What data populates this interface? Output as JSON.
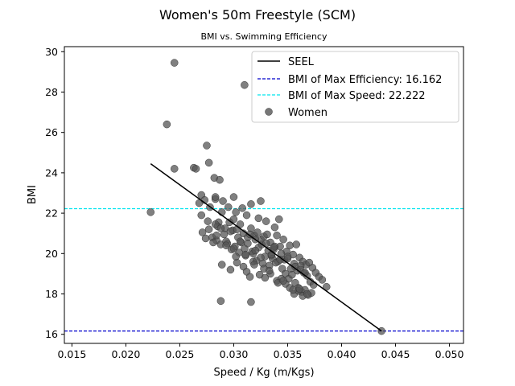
{
  "chart_data": {
    "type": "scatter",
    "title": "Women's 50m Freestyle (SCM)",
    "subtitle": "BMI vs. Swimming Efficiency",
    "xlabel": "Speed / Kg (m/Kgs)",
    "ylabel": "BMI",
    "xlim": [
      0.0143,
      0.0513
    ],
    "ylim": [
      15.55,
      30.25
    ],
    "xticks": [
      "0.015",
      "0.020",
      "0.025",
      "0.030",
      "0.035",
      "0.040",
      "0.045",
      "0.050"
    ],
    "yticks": [
      "16",
      "18",
      "20",
      "22",
      "24",
      "26",
      "28",
      "30"
    ],
    "grid": false,
    "legend_position": "top-right",
    "legend": [
      {
        "label": "SEEL",
        "style": "solid-line",
        "color": "#000000"
      },
      {
        "label": "BMI of Max Efficiency: 16.162",
        "style": "dashed-line",
        "color": "#0000cc"
      },
      {
        "label": "BMI of Max Speed: 22.222",
        "style": "dashed-line",
        "color": "#00e5ee"
      },
      {
        "label": "Women",
        "style": "marker",
        "color": "#555555"
      }
    ],
    "hlines": [
      {
        "y": 16.162,
        "color": "#0000cc"
      },
      {
        "y": 22.222,
        "color": "#00e5ee"
      }
    ],
    "seel_line": {
      "x": [
        0.0223,
        0.0437
      ],
      "y": [
        24.45,
        16.162
      ],
      "color": "#000000"
    },
    "series": [
      {
        "name": "Women",
        "color": "#555555",
        "x": [
          0.0245,
          0.031,
          0.0238,
          0.0223,
          0.0245,
          0.0263,
          0.0265,
          0.0275,
          0.0277,
          0.0282,
          0.0287,
          0.027,
          0.0268,
          0.0273,
          0.0278,
          0.0283,
          0.029,
          0.0295,
          0.03,
          0.03,
          0.0302,
          0.0308,
          0.0312,
          0.0316,
          0.0323,
          0.0325,
          0.033,
          0.0338,
          0.0342,
          0.0283,
          0.0286,
          0.0289,
          0.0292,
          0.0296,
          0.0299,
          0.0303,
          0.0306,
          0.0309,
          0.0313,
          0.0316,
          0.0319,
          0.0322,
          0.0325,
          0.0328,
          0.0331,
          0.0334,
          0.0337,
          0.034,
          0.0343,
          0.0346,
          0.0349,
          0.0352,
          0.0355,
          0.0358,
          0.0361,
          0.0364,
          0.0367,
          0.037,
          0.0373,
          0.0376,
          0.0379,
          0.0382,
          0.0386,
          0.028,
          0.0284,
          0.0288,
          0.0291,
          0.0294,
          0.0297,
          0.0301,
          0.0304,
          0.0307,
          0.031,
          0.0313,
          0.0317,
          0.032,
          0.0323,
          0.0326,
          0.0329,
          0.0332,
          0.0335,
          0.0338,
          0.0341,
          0.0344,
          0.0347,
          0.035,
          0.0353,
          0.0356,
          0.0359,
          0.0362,
          0.0365,
          0.0368,
          0.0371,
          0.0374,
          0.0271,
          0.0274,
          0.0277,
          0.0281,
          0.0285,
          0.0293,
          0.0298,
          0.0305,
          0.0311,
          0.0318,
          0.0321,
          0.0327,
          0.0333,
          0.0336,
          0.0339,
          0.0345,
          0.0348,
          0.0351,
          0.0354,
          0.0357,
          0.036,
          0.0363,
          0.0366,
          0.0369,
          0.0372,
          0.0289,
          0.0297,
          0.0303,
          0.0309,
          0.0312,
          0.0315,
          0.0318,
          0.0324,
          0.0329,
          0.0334,
          0.034,
          0.0344,
          0.0348,
          0.0352,
          0.0356,
          0.036,
          0.0364,
          0.027,
          0.0276,
          0.0283,
          0.0288,
          0.03,
          0.0306,
          0.0315,
          0.032,
          0.0325,
          0.033,
          0.0335,
          0.0337,
          0.0343,
          0.035,
          0.0357,
          0.0362,
          0.0366,
          0.0284,
          0.0293,
          0.0302,
          0.0311,
          0.0319,
          0.0328,
          0.0333,
          0.0341,
          0.0346,
          0.0355,
          0.0361,
          0.0368,
          0.0288,
          0.0316,
          0.0437
        ],
        "y": [
          29.45,
          28.35,
          26.4,
          22.05,
          24.2,
          24.25,
          24.2,
          25.35,
          24.5,
          23.75,
          23.65,
          22.9,
          22.5,
          22.65,
          22.3,
          22.7,
          22.6,
          22.3,
          22.8,
          21.7,
          22.05,
          22.25,
          21.9,
          22.45,
          21.75,
          22.6,
          21.6,
          21.3,
          21.7,
          22.8,
          21.55,
          22.05,
          21.25,
          21.55,
          21.15,
          21.2,
          21.45,
          21.0,
          20.8,
          21.25,
          20.9,
          21.05,
          20.7,
          20.85,
          20.95,
          20.55,
          20.2,
          20.9,
          20.35,
          20.7,
          20.1,
          20.4,
          19.95,
          20.45,
          19.8,
          19.6,
          19.45,
          19.55,
          19.3,
          19.05,
          18.85,
          18.7,
          18.35,
          20.8,
          20.65,
          20.45,
          20.95,
          20.5,
          21.1,
          20.35,
          20.8,
          20.55,
          20.25,
          20.5,
          20.1,
          20.7,
          20.3,
          20.45,
          19.85,
          20.15,
          19.9,
          20.35,
          19.6,
          20.0,
          19.7,
          19.75,
          19.25,
          19.5,
          19.15,
          19.4,
          19.05,
          18.9,
          18.6,
          18.45,
          21.05,
          20.75,
          21.2,
          20.55,
          21.35,
          20.6,
          20.2,
          20.05,
          19.9,
          20.0,
          19.65,
          19.5,
          19.4,
          19.75,
          19.55,
          19.25,
          19.0,
          18.75,
          18.95,
          18.55,
          18.3,
          18.1,
          18.2,
          17.95,
          18.05,
          19.45,
          19.2,
          19.55,
          19.35,
          19.1,
          18.85,
          19.6,
          18.95,
          18.8,
          19.0,
          18.65,
          18.75,
          18.5,
          18.3,
          18.0,
          18.15,
          17.9,
          21.9,
          21.6,
          21.45,
          21.25,
          20.25,
          20.6,
          20.95,
          20.15,
          19.8,
          20.5,
          19.95,
          20.3,
          19.7,
          19.85,
          19.35,
          19.2,
          19.05,
          20.9,
          20.4,
          19.85,
          19.95,
          19.45,
          19.25,
          19.15,
          18.55,
          18.65,
          18.2,
          18.25,
          18.0,
          17.65,
          17.6,
          16.162
        ]
      }
    ]
  }
}
